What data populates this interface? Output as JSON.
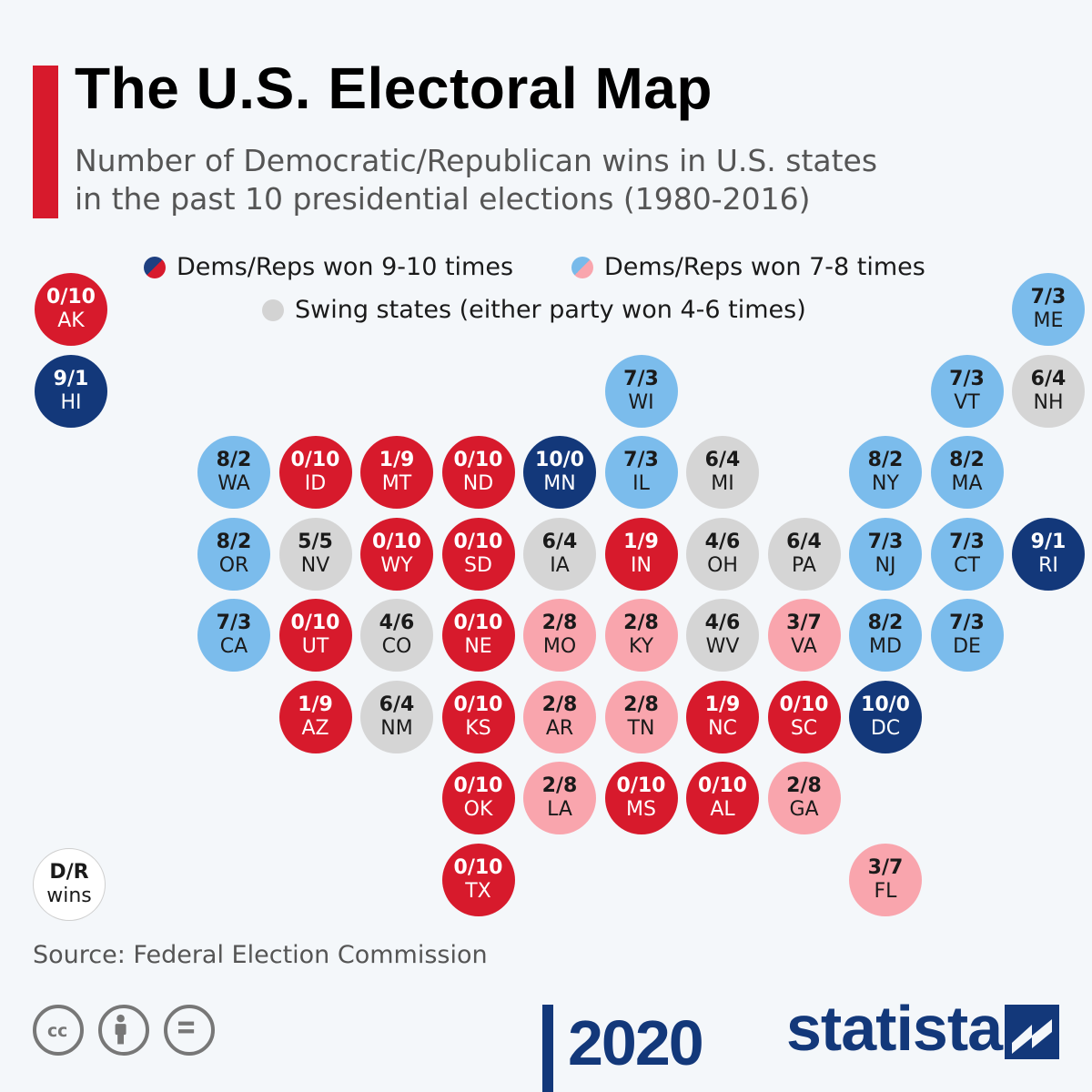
{
  "header": {
    "title": "The U.S. Electoral Map",
    "subtitle_line1": "Number of Democratic/Republican wins in U.S. states",
    "subtitle_line2": "in the past 10 presidential elections (1980-2016)"
  },
  "legend": {
    "strong": "Dems/Reps won 9-10 times",
    "lean": "Dems/Reps won 7-8 times",
    "swing": "Swing states (either party won 4-6 times)"
  },
  "colors": {
    "dem_strong": "#13387a",
    "rep_strong": "#d71a2c",
    "dem_lean": "#7bbcec",
    "rep_lean": "#f9a5ad",
    "swing": "#d5d5d5"
  },
  "key": {
    "label1": "D/R",
    "label2": "wins"
  },
  "chart_data": {
    "type": "tile-map",
    "title": "The U.S. Electoral Map",
    "value_format": "Democratic wins / Republican wins",
    "states": [
      {
        "abbr": "AK",
        "wins": "0/10",
        "dem": 0,
        "rep": 10
      },
      {
        "abbr": "HI",
        "wins": "9/1",
        "dem": 9,
        "rep": 1
      },
      {
        "abbr": "ME",
        "wins": "7/3",
        "dem": 7,
        "rep": 3
      },
      {
        "abbr": "WI",
        "wins": "7/3",
        "dem": 7,
        "rep": 3
      },
      {
        "abbr": "VT",
        "wins": "7/3",
        "dem": 7,
        "rep": 3
      },
      {
        "abbr": "NH",
        "wins": "6/4",
        "dem": 6,
        "rep": 4
      },
      {
        "abbr": "WA",
        "wins": "8/2",
        "dem": 8,
        "rep": 2
      },
      {
        "abbr": "ID",
        "wins": "0/10",
        "dem": 0,
        "rep": 10
      },
      {
        "abbr": "MT",
        "wins": "1/9",
        "dem": 1,
        "rep": 9
      },
      {
        "abbr": "ND",
        "wins": "0/10",
        "dem": 0,
        "rep": 10
      },
      {
        "abbr": "MN",
        "wins": "10/0",
        "dem": 10,
        "rep": 0
      },
      {
        "abbr": "IL",
        "wins": "7/3",
        "dem": 7,
        "rep": 3
      },
      {
        "abbr": "MI",
        "wins": "6/4",
        "dem": 6,
        "rep": 4
      },
      {
        "abbr": "NY",
        "wins": "8/2",
        "dem": 8,
        "rep": 2
      },
      {
        "abbr": "MA",
        "wins": "8/2",
        "dem": 8,
        "rep": 2
      },
      {
        "abbr": "OR",
        "wins": "8/2",
        "dem": 8,
        "rep": 2
      },
      {
        "abbr": "NV",
        "wins": "5/5",
        "dem": 5,
        "rep": 5
      },
      {
        "abbr": "WY",
        "wins": "0/10",
        "dem": 0,
        "rep": 10
      },
      {
        "abbr": "SD",
        "wins": "0/10",
        "dem": 0,
        "rep": 10
      },
      {
        "abbr": "IA",
        "wins": "6/4",
        "dem": 6,
        "rep": 4
      },
      {
        "abbr": "IN",
        "wins": "1/9",
        "dem": 1,
        "rep": 9
      },
      {
        "abbr": "OH",
        "wins": "4/6",
        "dem": 4,
        "rep": 6
      },
      {
        "abbr": "PA",
        "wins": "6/4",
        "dem": 6,
        "rep": 4
      },
      {
        "abbr": "NJ",
        "wins": "7/3",
        "dem": 7,
        "rep": 3
      },
      {
        "abbr": "CT",
        "wins": "7/3",
        "dem": 7,
        "rep": 3
      },
      {
        "abbr": "RI",
        "wins": "9/1",
        "dem": 9,
        "rep": 1
      },
      {
        "abbr": "CA",
        "wins": "7/3",
        "dem": 7,
        "rep": 3
      },
      {
        "abbr": "UT",
        "wins": "0/10",
        "dem": 0,
        "rep": 10
      },
      {
        "abbr": "CO",
        "wins": "4/6",
        "dem": 4,
        "rep": 6
      },
      {
        "abbr": "NE",
        "wins": "0/10",
        "dem": 0,
        "rep": 10
      },
      {
        "abbr": "MO",
        "wins": "2/8",
        "dem": 2,
        "rep": 8
      },
      {
        "abbr": "KY",
        "wins": "2/8",
        "dem": 2,
        "rep": 8
      },
      {
        "abbr": "WV",
        "wins": "4/6",
        "dem": 4,
        "rep": 6
      },
      {
        "abbr": "VA",
        "wins": "3/7",
        "dem": 3,
        "rep": 7
      },
      {
        "abbr": "MD",
        "wins": "8/2",
        "dem": 8,
        "rep": 2
      },
      {
        "abbr": "DE",
        "wins": "7/3",
        "dem": 7,
        "rep": 3
      },
      {
        "abbr": "AZ",
        "wins": "1/9",
        "dem": 1,
        "rep": 9
      },
      {
        "abbr": "NM",
        "wins": "6/4",
        "dem": 6,
        "rep": 4
      },
      {
        "abbr": "KS",
        "wins": "0/10",
        "dem": 0,
        "rep": 10
      },
      {
        "abbr": "AR",
        "wins": "2/8",
        "dem": 2,
        "rep": 8
      },
      {
        "abbr": "TN",
        "wins": "2/8",
        "dem": 2,
        "rep": 8
      },
      {
        "abbr": "NC",
        "wins": "1/9",
        "dem": 1,
        "rep": 9
      },
      {
        "abbr": "SC",
        "wins": "0/10",
        "dem": 0,
        "rep": 10
      },
      {
        "abbr": "DC",
        "wins": "10/0",
        "dem": 10,
        "rep": 0
      },
      {
        "abbr": "OK",
        "wins": "0/10",
        "dem": 0,
        "rep": 10
      },
      {
        "abbr": "LA",
        "wins": "2/8",
        "dem": 2,
        "rep": 8
      },
      {
        "abbr": "MS",
        "wins": "0/10",
        "dem": 0,
        "rep": 10
      },
      {
        "abbr": "AL",
        "wins": "0/10",
        "dem": 0,
        "rep": 10
      },
      {
        "abbr": "GA",
        "wins": "2/8",
        "dem": 2,
        "rep": 8
      },
      {
        "abbr": "TX",
        "wins": "0/10",
        "dem": 0,
        "rep": 10
      },
      {
        "abbr": "FL",
        "wins": "3/7",
        "dem": 3,
        "rep": 7
      }
    ]
  },
  "footer": {
    "source": "Source: Federal Election Commission",
    "brand": "statista",
    "year": "2020",
    "license_icons": [
      "creative-commons-icon",
      "attribution-icon",
      "no-derivatives-icon"
    ]
  }
}
